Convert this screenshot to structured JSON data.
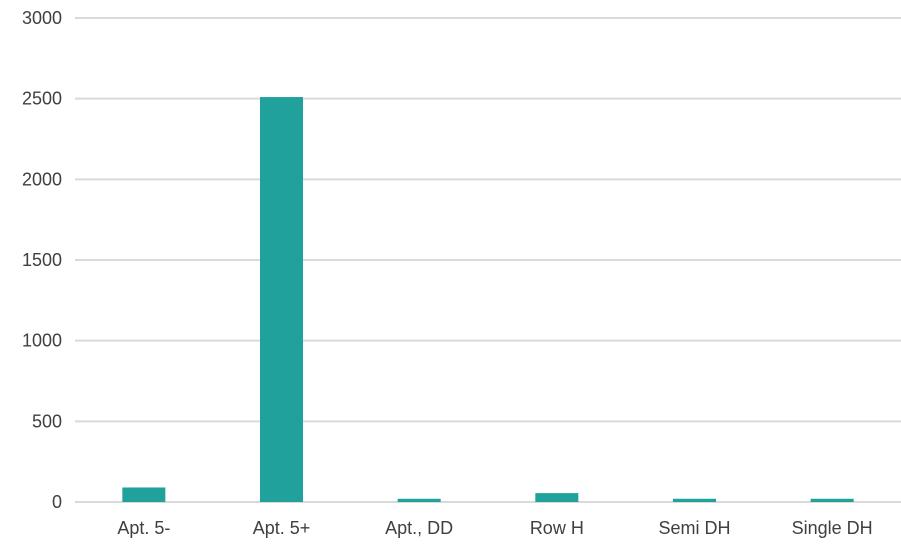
{
  "chart_data": {
    "type": "bar",
    "categories": [
      "Apt. 5-",
      "Apt. 5+",
      "Apt., DD",
      "Row H",
      "Semi DH",
      "Single DH"
    ],
    "values": [
      90,
      2510,
      20,
      55,
      20,
      20
    ],
    "ylim": [
      0,
      3000
    ],
    "yticks": [
      0,
      500,
      1000,
      1500,
      2000,
      2500,
      3000
    ],
    "grid": true,
    "legend": "none",
    "title": "",
    "xlabel": "",
    "ylabel": "",
    "bar_color": "#20a19b"
  }
}
